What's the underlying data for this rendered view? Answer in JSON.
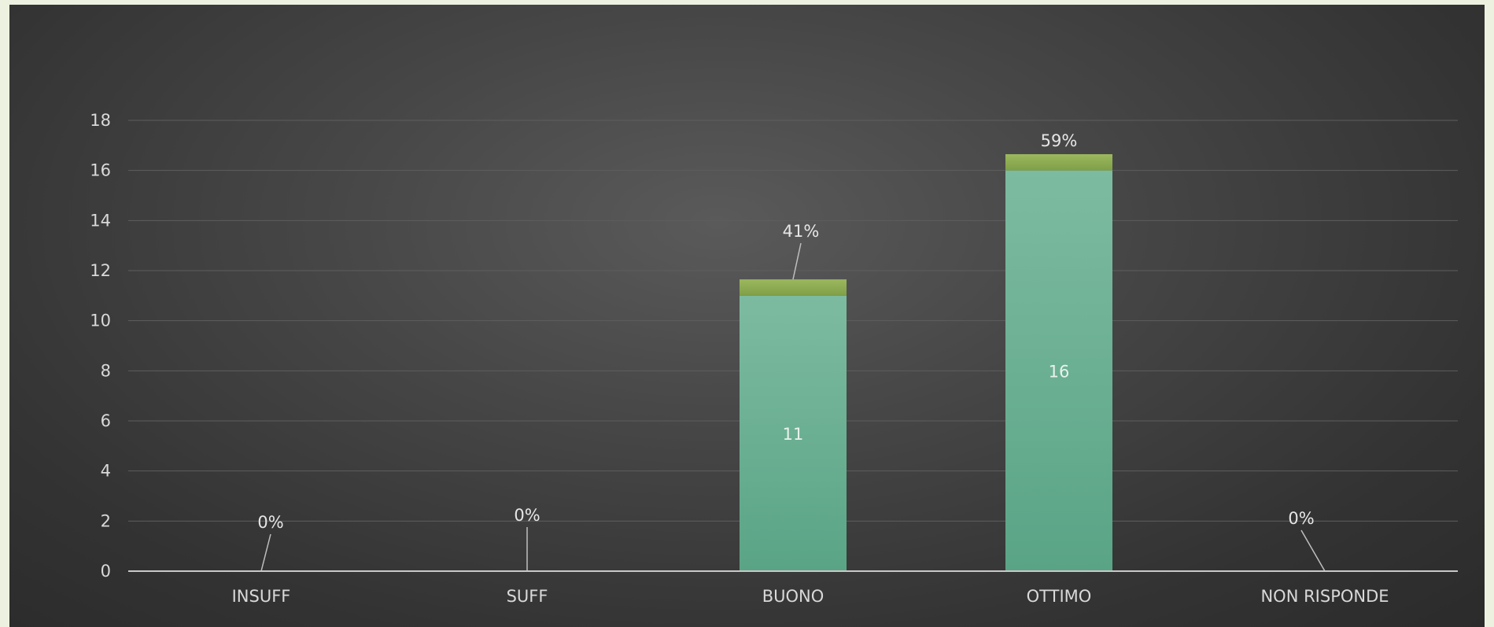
{
  "chart_data": {
    "type": "bar",
    "stacked": true,
    "title": "",
    "xlabel": "",
    "ylabel": "",
    "categories": [
      "INSUFF",
      "SUFF",
      "BUONO",
      "OTTIMO",
      "NON RISPONDE"
    ],
    "series": [
      {
        "values": [
          0,
          0,
          11,
          16,
          0
        ],
        "color": "#6bb396"
      },
      {
        "values": [
          0,
          0,
          0.41,
          0.59,
          0
        ],
        "color": "#8aa84e"
      }
    ],
    "value_labels": [
      "",
      "",
      "11",
      "16",
      ""
    ],
    "percent_labels": [
      "0%",
      "0%",
      "41%",
      "59%",
      "0%"
    ],
    "ylim": [
      0,
      18
    ],
    "yticks": [
      "0",
      "2",
      "4",
      "6",
      "8",
      "10",
      "12",
      "14",
      "16",
      "18"
    ],
    "grid": true,
    "legend": "none",
    "colors": {
      "background": "#3a3a3a",
      "page": "#ecf2df",
      "gridline": "#5e5e5e",
      "axis": "#c8c8c8",
      "text": "#d9d9d9"
    }
  }
}
